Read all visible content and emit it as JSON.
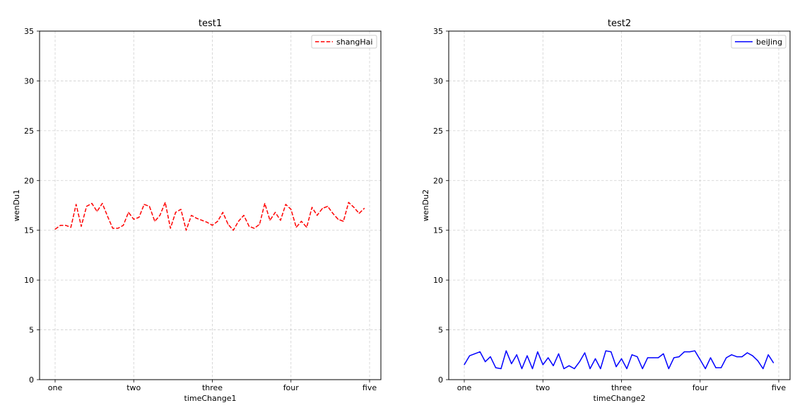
{
  "chart_data": [
    {
      "type": "line",
      "title": "test1",
      "xlabel": "timeChange1",
      "ylabel": "wenDu1",
      "xticklabels": [
        "one",
        "two",
        "three",
        "four",
        "five"
      ],
      "yticks": [
        0,
        5,
        10,
        15,
        20,
        25,
        30,
        35
      ],
      "ylim": [
        0,
        35
      ],
      "xlim": [
        -0.2,
        4.15
      ],
      "grid": true,
      "legend_position": "upper right",
      "series": [
        {
          "name": "shangHai",
          "color": "#ff0000",
          "linestyle": "dashed",
          "x": [
            0.0,
            0.067,
            0.133,
            0.2,
            0.267,
            0.333,
            0.4,
            0.467,
            0.533,
            0.6,
            0.667,
            0.733,
            0.8,
            0.867,
            0.933,
            1.0,
            1.067,
            1.133,
            1.2,
            1.267,
            1.333,
            1.4,
            1.467,
            1.533,
            1.6,
            1.667,
            1.733,
            1.8,
            1.867,
            1.933,
            2.0,
            2.067,
            2.133,
            2.2,
            2.267,
            2.333,
            2.4,
            2.467,
            2.533,
            2.6,
            2.667,
            2.733,
            2.8,
            2.867,
            2.933,
            3.0,
            3.067,
            3.133,
            3.2,
            3.267,
            3.333,
            3.4,
            3.467,
            3.533,
            3.6,
            3.667,
            3.733,
            3.8,
            3.867,
            3.933
          ],
          "values": [
            15.1,
            15.5,
            15.5,
            15.3,
            17.6,
            15.4,
            17.4,
            17.7,
            16.9,
            17.7,
            16.4,
            15.2,
            15.2,
            15.5,
            16.8,
            16.1,
            16.3,
            17.6,
            17.4,
            15.9,
            16.5,
            17.8,
            15.2,
            16.8,
            17.1,
            15.0,
            16.5,
            16.2,
            16.0,
            15.8,
            15.5,
            15.9,
            16.8,
            15.6,
            15.0,
            15.9,
            16.5,
            15.4,
            15.2,
            15.6,
            17.7,
            16.0,
            16.8,
            16.0,
            17.6,
            17.1,
            15.3,
            15.9,
            15.3,
            17.3,
            16.5,
            17.2,
            17.4,
            16.7,
            16.1,
            15.9,
            17.8,
            17.3,
            16.7,
            17.2
          ]
        }
      ]
    },
    {
      "type": "line",
      "title": "test2",
      "xlabel": "timeChange2",
      "ylabel": "wenDu2",
      "xticklabels": [
        "one",
        "two",
        "three",
        "four",
        "five"
      ],
      "yticks": [
        0,
        5,
        10,
        15,
        20,
        25,
        30,
        35
      ],
      "ylim": [
        0,
        35
      ],
      "xlim": [
        -0.2,
        4.15
      ],
      "grid": true,
      "legend_position": "upper right",
      "series": [
        {
          "name": "beiJing",
          "color": "#0000ff",
          "linestyle": "solid",
          "x": [
            0.0,
            0.067,
            0.133,
            0.2,
            0.267,
            0.333,
            0.4,
            0.467,
            0.533,
            0.6,
            0.667,
            0.733,
            0.8,
            0.867,
            0.933,
            1.0,
            1.067,
            1.133,
            1.2,
            1.267,
            1.333,
            1.4,
            1.467,
            1.533,
            1.6,
            1.667,
            1.733,
            1.8,
            1.867,
            1.933,
            2.0,
            2.067,
            2.133,
            2.2,
            2.267,
            2.333,
            2.4,
            2.467,
            2.533,
            2.6,
            2.667,
            2.733,
            2.8,
            2.867,
            2.933,
            3.0,
            3.067,
            3.133,
            3.2,
            3.267,
            3.333,
            3.4,
            3.467,
            3.533,
            3.6,
            3.667,
            3.733,
            3.8,
            3.867,
            3.933
          ],
          "values": [
            1.5,
            2.4,
            2.6,
            2.8,
            1.8,
            2.3,
            1.2,
            1.1,
            2.9,
            1.6,
            2.5,
            1.1,
            2.4,
            1.1,
            2.8,
            1.5,
            2.2,
            1.4,
            2.6,
            1.1,
            1.4,
            1.1,
            1.8,
            2.7,
            1.1,
            2.1,
            1.1,
            2.9,
            2.8,
            1.3,
            2.1,
            1.1,
            2.5,
            2.3,
            1.1,
            2.2,
            2.2,
            2.2,
            2.6,
            1.1,
            2.2,
            2.3,
            2.8,
            2.8,
            2.9,
            2.0,
            1.1,
            2.2,
            1.2,
            1.2,
            2.2,
            2.5,
            2.3,
            2.3,
            2.7,
            2.4,
            1.9,
            1.1,
            2.5,
            1.7
          ]
        }
      ]
    }
  ]
}
